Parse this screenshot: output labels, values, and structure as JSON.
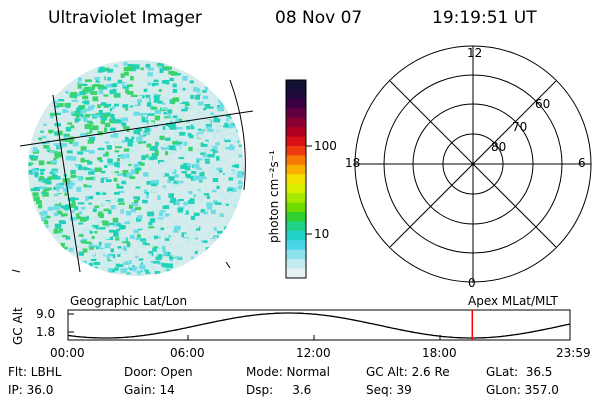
{
  "header": {
    "instrument": "Ultraviolet Imager",
    "date": "08 Nov 07",
    "time": "19:19:51 UT"
  },
  "colorbar": {
    "unit": "photon cm⁻²s⁻¹",
    "ticks": [
      "100",
      "10"
    ],
    "colors": [
      "#111133",
      "#1c0a3a",
      "#3a0040",
      "#600040",
      "#8a0030",
      "#b00020",
      "#d81018",
      "#ef3a10",
      "#f57a08",
      "#f9b000",
      "#f4e000",
      "#d8f000",
      "#a8e800",
      "#6edc00",
      "#30d030",
      "#20d28a",
      "#22d2c8",
      "#4ad6e6",
      "#8ee2ec",
      "#c4ecf0",
      "#e6f2f2"
    ]
  },
  "polar": {
    "mlt_labels": [
      "12",
      "18",
      "6",
      "0"
    ],
    "lat_labels": [
      "60",
      "70",
      "80"
    ]
  },
  "labels": {
    "geo": "Geographic Lat/Lon",
    "apex": "Apex  MLat/MLT"
  },
  "orbit": {
    "axis_title": "GC Alt",
    "y_ticks": [
      "9.0",
      "1.8"
    ],
    "x_ticks": [
      "00:00",
      "06:00",
      "12:00",
      "18:00",
      "23:59"
    ],
    "current_marker_hour": 19.33,
    "marker_color": "#ff0000"
  },
  "info": {
    "row1": [
      "Flt: LBHL",
      "Door: Open",
      "Mode: Normal",
      "GC Alt: 2.6 Re",
      "GLat:  36.5"
    ],
    "row2": [
      "IP: 36.0",
      "Gain: 14",
      "Dsp:     3.6",
      "Seq: 39",
      "GLon: 357.0"
    ]
  }
}
